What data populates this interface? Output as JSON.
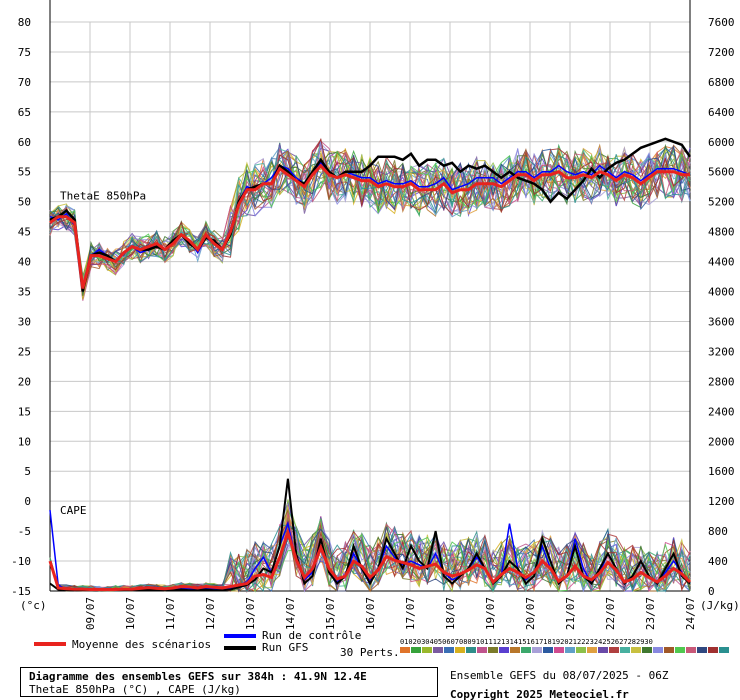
{
  "chart_data": {
    "type": "line",
    "title": "Diagramme des ensembles GEFS sur 384h : 41.9N 12.4E",
    "subtitle": "ThetaE 850hPa (°C) , CAPE (J/kg)",
    "left_axis_unit": "(°c)",
    "right_axis_unit": "(J/kg)",
    "left_ticks": [
      80,
      75,
      70,
      65,
      60,
      55,
      50,
      45,
      40,
      35,
      30,
      25,
      20,
      15,
      10,
      5,
      0,
      -5,
      -10,
      -15
    ],
    "right_ticks": [
      7600,
      7200,
      6800,
      6400,
      6000,
      5600,
      5200,
      4800,
      4400,
      4000,
      3600,
      3200,
      2800,
      2400,
      2000,
      1600,
      1200,
      800,
      400,
      0
    ],
    "x_labels": [
      "09/07",
      "10/07",
      "11/07",
      "12/07",
      "13/07",
      "14/07",
      "15/07",
      "16/07",
      "17/07",
      "18/07",
      "19/07",
      "20/07",
      "21/07",
      "22/07",
      "23/07",
      "24/07"
    ],
    "panel_labels": [
      "ThetaE 850hPa",
      "CAPE"
    ],
    "thetae_mean": {
      "name": "Moyenne des scénarios",
      "color": "#e8231e",
      "values": [
        46.5,
        47.5,
        47.5,
        46.5,
        35.5,
        41,
        41,
        40.5,
        40,
        41.5,
        42.5,
        42,
        42.5,
        43,
        42,
        43,
        44.5,
        43.5,
        42,
        44.5,
        43,
        42,
        45,
        49.5,
        52,
        52,
        53,
        53,
        55.5,
        54.5,
        53.5,
        52.5,
        54.5,
        56,
        54.5,
        54,
        54.5,
        54,
        53.5,
        53.5,
        52.5,
        53,
        52.5,
        52.5,
        53,
        52,
        52,
        52,
        53,
        51.5,
        52,
        52,
        53,
        53,
        53,
        52.5,
        53.5,
        54.5,
        54.5,
        53.5,
        54.5,
        54.5,
        55,
        54,
        54,
        54.5,
        54,
        55,
        54.5,
        53.5,
        54.5,
        54,
        53,
        54,
        55,
        55,
        55,
        54.5,
        54.5
      ]
    },
    "thetae_gfs": {
      "name": "Run GFS",
      "color": "#000000",
      "values": [
        47,
        47.5,
        48.5,
        47,
        35,
        41,
        41.5,
        41,
        40,
        41.5,
        42.5,
        42,
        42,
        42.5,
        42,
        43.5,
        44.5,
        43,
        42,
        44,
        43.5,
        42,
        44.5,
        50,
        52,
        52.5,
        53,
        53,
        56,
        55,
        53.5,
        53,
        55,
        57,
        55,
        54,
        55,
        55,
        55,
        56,
        57.5,
        57.5,
        57.5,
        57,
        58,
        56,
        57,
        57,
        56,
        56.5,
        55,
        56,
        55.5,
        56,
        55,
        54,
        55,
        54,
        53.5,
        53,
        52,
        50,
        51.5,
        50.5,
        52,
        53.5,
        55.5,
        54,
        55.5,
        56.5,
        57,
        58,
        59,
        59.5,
        60,
        60.5,
        60,
        59.5,
        57.5
      ]
    },
    "thetae_control": {
      "name": "Run de contrôle",
      "color": "#0000ff",
      "values": [
        47.5,
        47,
        48,
        46,
        35,
        41,
        42,
        41,
        40,
        41.5,
        42.5,
        41.5,
        42,
        43,
        42,
        43.5,
        44.5,
        43.5,
        41.5,
        44,
        43,
        42,
        45.5,
        50,
        52.5,
        52,
        53,
        54,
        56,
        55.5,
        54,
        53,
        55,
        56.5,
        55,
        54,
        55,
        54.5,
        54,
        54,
        53,
        53.5,
        53,
        53,
        53.5,
        52.5,
        52.5,
        53,
        54,
        52,
        52.5,
        53,
        54,
        54,
        54,
        53,
        54,
        55,
        55,
        54,
        55,
        55,
        56,
        55,
        54.5,
        55,
        54.5,
        56,
        55,
        54,
        55,
        54.5,
        53.5,
        54.5,
        55.5,
        55.5,
        55.5,
        55,
        54.5
      ]
    },
    "cape_mean": {
      "name": "Moyenne des scénarios",
      "color": "#e8231e",
      "values": [
        400,
        40,
        30,
        25,
        25,
        20,
        20,
        20,
        20,
        25,
        25,
        35,
        45,
        35,
        30,
        40,
        60,
        55,
        40,
        60,
        50,
        40,
        60,
        80,
        100,
        200,
        220,
        180,
        450,
        780,
        420,
        180,
        300,
        580,
        300,
        160,
        200,
        400,
        330,
        180,
        280,
        460,
        410,
        380,
        350,
        300,
        330,
        360,
        250,
        200,
        230,
        280,
        350,
        300,
        120,
        220,
        300,
        250,
        180,
        250,
        400,
        300,
        130,
        200,
        330,
        200,
        150,
        240,
        380,
        280,
        120,
        160,
        250,
        180,
        120,
        200,
        300,
        230,
        120
      ]
    },
    "cape_gfs": {
      "name": "Run GFS",
      "color": "#000000",
      "values": [
        100,
        20,
        10,
        10,
        10,
        10,
        10,
        10,
        10,
        10,
        10,
        10,
        20,
        10,
        10,
        10,
        20,
        10,
        10,
        20,
        10,
        10,
        20,
        50,
        80,
        150,
        300,
        250,
        600,
        1500,
        500,
        100,
        200,
        700,
        250,
        100,
        200,
        600,
        300,
        100,
        300,
        700,
        500,
        300,
        600,
        400,
        300,
        800,
        200,
        100,
        200,
        300,
        500,
        300,
        100,
        200,
        400,
        300,
        100,
        200,
        700,
        400,
        100,
        200,
        600,
        200,
        100,
        300,
        500,
        300,
        100,
        200,
        400,
        200,
        100,
        300,
        500,
        200,
        100
      ]
    },
    "cape_control": {
      "name": "Run de contrôle",
      "color": "#0000ff",
      "values": [
        1080,
        80,
        20,
        10,
        10,
        10,
        10,
        10,
        10,
        10,
        10,
        20,
        30,
        20,
        20,
        30,
        40,
        30,
        20,
        40,
        30,
        20,
        40,
        80,
        120,
        300,
        450,
        250,
        600,
        900,
        400,
        150,
        250,
        700,
        250,
        120,
        200,
        500,
        300,
        150,
        300,
        600,
        450,
        350,
        400,
        350,
        300,
        500,
        250,
        150,
        200,
        300,
        450,
        300,
        100,
        200,
        900,
        300,
        150,
        250,
        600,
        300,
        100,
        200,
        700,
        300,
        100,
        250,
        500,
        300,
        100,
        200,
        400,
        200,
        100,
        250,
        400,
        250,
        100
      ]
    },
    "perturbation_count_label": "30 Perts.",
    "perturbation_numbers": [
      "01",
      "02",
      "03",
      "04",
      "05",
      "06",
      "07",
      "08",
      "09",
      "10",
      "11",
      "12",
      "13",
      "14",
      "15",
      "16",
      "17",
      "18",
      "19",
      "20",
      "21",
      "22",
      "23",
      "24",
      "25",
      "26",
      "27",
      "28",
      "29",
      "30"
    ],
    "perturbation_colors": [
      "#e0742a",
      "#36a23a",
      "#9ab82c",
      "#7a5aa0",
      "#3a6fb5",
      "#d7b01e",
      "#2f8e8a",
      "#c0548d",
      "#7b7b2a",
      "#5a3fd0",
      "#b8772a",
      "#3ca86c",
      "#a8a0d8",
      "#2c5aa0",
      "#d04b8f",
      "#5fa0c8",
      "#8cc04a",
      "#e0a040",
      "#6a4aa8",
      "#b04040",
      "#48b0a0",
      "#c8c040",
      "#407830",
      "#8888e0",
      "#a05828",
      "#50c850",
      "#c85878",
      "#304880",
      "#a03030",
      "#2a9090"
    ],
    "grid": true,
    "legend": "bottom"
  },
  "legend": {
    "mean_label": "Moyenne des scénarios",
    "control_label": "Run de contrôle",
    "gfs_label": "Run GFS"
  },
  "footer": {
    "title": "Diagramme des ensembles GEFS sur 384h : 41.9N 12.4E",
    "subtitle": "ThetaE 850hPa (°C) , CAPE (J/kg)",
    "run_info": "Ensemble GEFS du 08/07/2025 - 06Z",
    "copyright": "Copyright 2025 Meteociel.fr"
  }
}
